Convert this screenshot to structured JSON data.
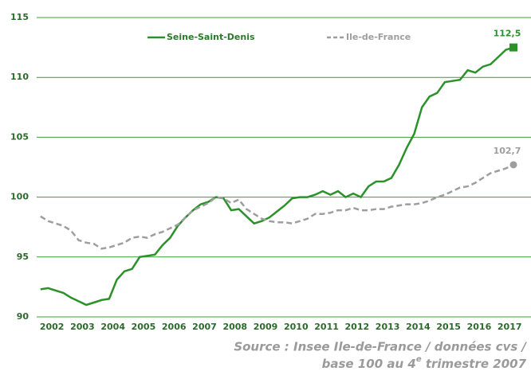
{
  "chart_data": {
    "type": "line",
    "x": [
      2002.125,
      2002.375,
      2002.625,
      2002.875,
      2003.125,
      2003.375,
      2003.625,
      2003.875,
      2004.125,
      2004.375,
      2004.625,
      2004.875,
      2005.125,
      2005.375,
      2005.625,
      2005.875,
      2006.125,
      2006.375,
      2006.625,
      2006.875,
      2007.125,
      2007.375,
      2007.625,
      2007.875,
      2008.125,
      2008.375,
      2008.625,
      2008.875,
      2009.125,
      2009.375,
      2009.625,
      2009.875,
      2010.125,
      2010.375,
      2010.625,
      2010.875,
      2011.125,
      2011.375,
      2011.625,
      2011.875,
      2012.125,
      2012.375,
      2012.625,
      2012.875,
      2013.125,
      2013.375,
      2013.625,
      2013.875,
      2014.125,
      2014.375,
      2014.625,
      2014.875,
      2015.125,
      2015.375,
      2015.625,
      2015.875,
      2016.125,
      2016.375,
      2016.625,
      2016.875,
      2017.125,
      2017.375,
      2017.625
    ],
    "series": [
      {
        "name": "Seine-Saint-Denis",
        "color": "#2a9229",
        "dashed": false,
        "end_marker": "square",
        "values": [
          92.3,
          92.4,
          92.2,
          92.0,
          91.6,
          91.3,
          91.0,
          91.2,
          91.4,
          91.5,
          93.1,
          93.8,
          94.0,
          95.0,
          95.1,
          95.2,
          96.0,
          96.6,
          97.6,
          98.3,
          98.9,
          99.4,
          99.6,
          100.0,
          99.9,
          98.9,
          99.0,
          98.4,
          97.8,
          98.0,
          98.3,
          98.8,
          99.3,
          99.9,
          100.0,
          100.0,
          100.2,
          100.5,
          100.2,
          100.5,
          100.0,
          100.3,
          100.0,
          100.9,
          101.3,
          101.3,
          101.6,
          102.7,
          104.1,
          105.3,
          107.5,
          108.4,
          108.7,
          109.6,
          109.7,
          109.8,
          110.6,
          110.4,
          110.9,
          111.1,
          111.7,
          112.3,
          112.5
        ],
        "value_labels": [
          null,
          null,
          null,
          null,
          null,
          null,
          null,
          null,
          null,
          null,
          null,
          null,
          null,
          null,
          null,
          null,
          null,
          null,
          null,
          null,
          null,
          null,
          null,
          null,
          null,
          null,
          null,
          null,
          null,
          null,
          null,
          null,
          null,
          null,
          null,
          null,
          null,
          null,
          null,
          null,
          null,
          null,
          null,
          null,
          null,
          null,
          null,
          null,
          null,
          null,
          null,
          null,
          null,
          null,
          null,
          null,
          null,
          null,
          null,
          null,
          null,
          null,
          "112,5"
        ]
      },
      {
        "name": "Ile-de-France",
        "color": "#9e9e9e",
        "dashed": true,
        "end_marker": "circle",
        "values": [
          98.4,
          98.0,
          97.8,
          97.6,
          97.2,
          96.4,
          96.2,
          96.1,
          95.7,
          95.8,
          96.0,
          96.2,
          96.6,
          96.7,
          96.6,
          96.9,
          97.1,
          97.4,
          97.7,
          98.3,
          98.9,
          99.2,
          99.5,
          100.0,
          99.9,
          99.5,
          99.8,
          99.0,
          98.6,
          98.2,
          98.0,
          97.9,
          97.9,
          97.8,
          98.0,
          98.2,
          98.6,
          98.6,
          98.7,
          98.9,
          98.9,
          99.1,
          98.9,
          98.9,
          99.0,
          99.0,
          99.2,
          99.3,
          99.4,
          99.4,
          99.5,
          99.7,
          100.0,
          100.2,
          100.5,
          100.8,
          100.9,
          101.2,
          101.6,
          102.0,
          102.2,
          102.4,
          102.7
        ],
        "value_labels": [
          null,
          null,
          null,
          null,
          null,
          null,
          null,
          null,
          null,
          null,
          null,
          null,
          null,
          null,
          null,
          null,
          null,
          null,
          null,
          null,
          null,
          null,
          null,
          null,
          null,
          null,
          null,
          null,
          null,
          null,
          null,
          null,
          null,
          null,
          null,
          null,
          null,
          null,
          null,
          null,
          null,
          null,
          null,
          null,
          null,
          null,
          null,
          null,
          null,
          null,
          null,
          null,
          null,
          null,
          null,
          null,
          null,
          null,
          null,
          null,
          null,
          null,
          "102,7"
        ]
      }
    ],
    "xlim": [
      2002,
      2018.2
    ],
    "xticks": [
      {
        "value": 2002.5,
        "label": "2002"
      },
      {
        "value": 2003.5,
        "label": "2003"
      },
      {
        "value": 2004.5,
        "label": "2004"
      },
      {
        "value": 2005.5,
        "label": "2005"
      },
      {
        "value": 2006.5,
        "label": "2006"
      },
      {
        "value": 2007.5,
        "label": "2007"
      },
      {
        "value": 2008.5,
        "label": "2008"
      },
      {
        "value": 2009.5,
        "label": "2009"
      },
      {
        "value": 2010.5,
        "label": "2010"
      },
      {
        "value": 2011.5,
        "label": "2011"
      },
      {
        "value": 2012.5,
        "label": "2012"
      },
      {
        "value": 2013.5,
        "label": "2013"
      },
      {
        "value": 2014.5,
        "label": "2014"
      },
      {
        "value": 2015.5,
        "label": "2015"
      },
      {
        "value": 2016.5,
        "label": "2016"
      },
      {
        "value": 2017.5,
        "label": "2017"
      }
    ],
    "ylim": [
      90,
      115
    ],
    "yticks": [
      90,
      95,
      100,
      105,
      110,
      115
    ],
    "grid": true,
    "grid_color": "#3c9c3c",
    "legend": "top",
    "source": [
      "Source : Insee Ile-de-France / données cvs /",
      [
        "base 100 au 4",
        "e",
        " trimestre 2007"
      ]
    ]
  }
}
